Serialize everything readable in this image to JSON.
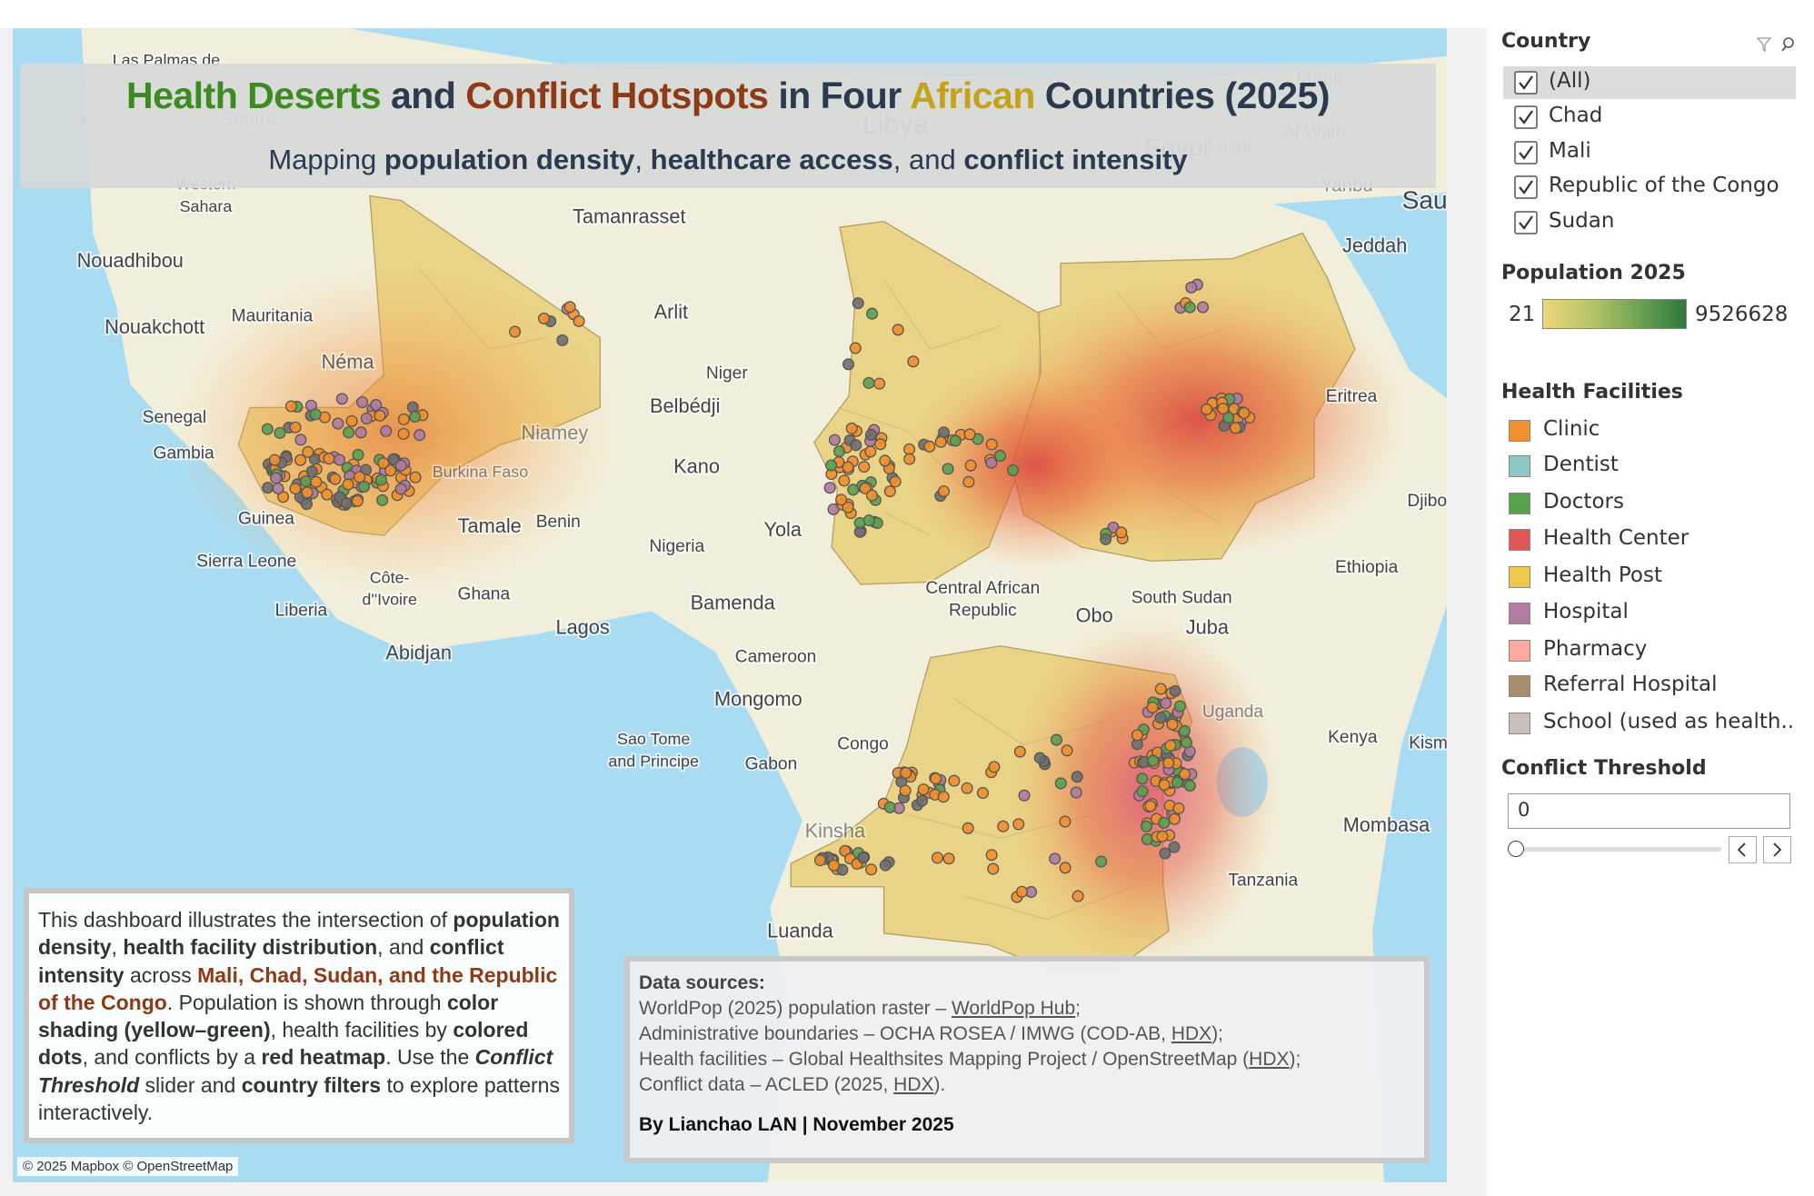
{
  "header": {
    "title": [
      {
        "text": "Health Deserts",
        "color": "#3d8a21"
      },
      {
        "text": " and ",
        "color": "#2b3a4e"
      },
      {
        "text": "Conflict Hotspots",
        "color": "#8e3a14"
      },
      {
        "text": " in Four ",
        "color": "#2b3a4e"
      },
      {
        "text": "African",
        "color": "#c4a31b"
      },
      {
        "text": " Countries (2025)",
        "color": "#2b3a4e"
      }
    ],
    "subtitle": [
      {
        "text": "Mapping ",
        "bold": false
      },
      {
        "text": "population density",
        "bold": true
      },
      {
        "text": ", ",
        "bold": false
      },
      {
        "text": "healthcare access",
        "bold": true
      },
      {
        "text": ", and ",
        "bold": false
      },
      {
        "text": "conflict intensity",
        "bold": true
      }
    ]
  },
  "map": {
    "labels": [
      "Las Palmas de",
      "Smara",
      "Libya",
      "Tabuk",
      "Egypt",
      "Luxor",
      "Al Wajh",
      "Western",
      "Sahara",
      "Yanbu",
      "Sau",
      "Tamanrasset",
      "Jeddah",
      "Nouadhibou",
      "Mauritania",
      "Nouakchott",
      "Arlit",
      "Néma",
      "Niger",
      "Senegal",
      "Belbédji",
      "Eritrea",
      "Gambia",
      "Niamey",
      "Kano",
      "Burkina Faso",
      "Djibo",
      "Guinea",
      "Tamale",
      "Benin",
      "Yola",
      "Nigeria",
      "Ethiopia",
      "Sierra Leone",
      "Côte-",
      "d''Ivoire",
      "Ghana",
      "Central African",
      "Republic",
      "South Sudan",
      "Liberia",
      "Bamenda",
      "Obo",
      "Juba",
      "Lagos",
      "Abidjan",
      "Cameroon",
      "Mongomo",
      "Uganda",
      "Sao Tome",
      "and Principe",
      "Congo",
      "Gabon",
      "Kenya",
      "Kism",
      "Kinsha",
      "Mombasa",
      "Tanzania",
      "Luanda"
    ],
    "attribution": "© 2025 Mapbox © OpenStreetMap"
  },
  "description": [
    {
      "text": "This dashboard illustrates the intersection of ",
      "style": "plain"
    },
    {
      "text": "population density",
      "style": "bold"
    },
    {
      "text": ", ",
      "style": "plain"
    },
    {
      "text": "health facility distribution",
      "style": "bold"
    },
    {
      "text": ", and ",
      "style": "plain"
    },
    {
      "text": "conflict intensity",
      "style": "bold"
    },
    {
      "text": " across ",
      "style": "plain"
    },
    {
      "text": "Mali, Chad, Sudan, and the Republic of the Congo",
      "style": "highlight"
    },
    {
      "text": ". Population is shown through ",
      "style": "plain"
    },
    {
      "text": "color shading (yellow–green)",
      "style": "bold"
    },
    {
      "text": ", health facilities by ",
      "style": "plain"
    },
    {
      "text": "colored dots",
      "style": "bold"
    },
    {
      "text": ", and conflicts by a ",
      "style": "plain"
    },
    {
      "text": "red heatmap",
      "style": "bold"
    },
    {
      "text": ". Use the ",
      "style": "plain"
    },
    {
      "text": "Conflict Threshold",
      "style": "bold-italic"
    },
    {
      "text": " slider and ",
      "style": "plain"
    },
    {
      "text": "country filters",
      "style": "bold"
    },
    {
      "text": " to explore patterns interactively.",
      "style": "plain"
    }
  ],
  "sources": {
    "heading": "Data sources:",
    "lines": [
      [
        {
          "text": "WorldPop (2025) population raster – ",
          "link": false
        },
        {
          "text": "WorldPop Hub",
          "link": true
        },
        {
          "text": ";",
          "link": false
        }
      ],
      [
        {
          "text": "Administrative boundaries – OCHA ROSEA / IMWG (COD-AB, ",
          "link": false
        },
        {
          "text": "HDX",
          "link": true
        },
        {
          "text": ");",
          "link": false
        }
      ],
      [
        {
          "text": "Health facilities – Global Healthsites Mapping Project / OpenStreetMap (",
          "link": false
        },
        {
          "text": "HDX",
          "link": true
        },
        {
          "text": ");",
          "link": false
        }
      ],
      [
        {
          "text": "Conflict data – ACLED (2025, ",
          "link": false
        },
        {
          "text": "HDX",
          "link": true
        },
        {
          "text": ").",
          "link": false
        }
      ]
    ],
    "byline": "By Lianchao LAN | November 2025"
  },
  "filters": {
    "country": {
      "title": "Country",
      "options": [
        {
          "label": "(All)",
          "checked": true
        },
        {
          "label": "Chad",
          "checked": true
        },
        {
          "label": "Mali",
          "checked": true
        },
        {
          "label": "Republic of the Congo",
          "checked": true
        },
        {
          "label": "Sudan",
          "checked": true
        }
      ]
    },
    "population_legend": {
      "title": "Population 2025",
      "min": 21,
      "max": 9526628,
      "colors": [
        "#ecd67a",
        "#b9c46a",
        "#6fa352",
        "#2c7a3c"
      ]
    },
    "facilities": {
      "title": "Health Facilities",
      "items": [
        {
          "label": "Clinic",
          "color": "#f28e2b"
        },
        {
          "label": "Dentist",
          "color": "#8fc7c4"
        },
        {
          "label": "Doctors",
          "color": "#59a14f"
        },
        {
          "label": "Health Center",
          "color": "#e15759"
        },
        {
          "label": "Health Post",
          "color": "#edc948"
        },
        {
          "label": "Hospital",
          "color": "#b07aa1"
        },
        {
          "label": "Pharmacy",
          "color": "#ffa8a0"
        },
        {
          "label": "Referral Hospital",
          "color": "#a88a6d"
        },
        {
          "label": "School (used as health..",
          "color": "#c8c0b8"
        }
      ]
    },
    "conflict_threshold": {
      "title": "Conflict Threshold",
      "value": 0
    }
  }
}
